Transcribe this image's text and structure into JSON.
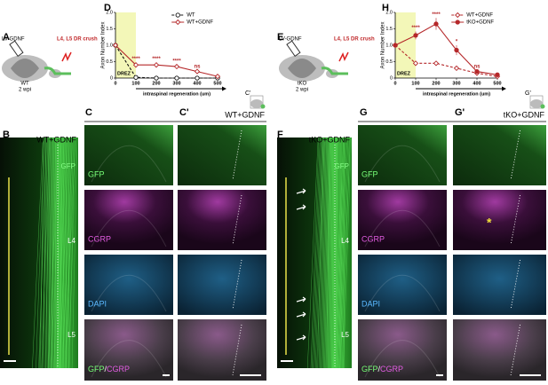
{
  "letters": [
    "A",
    "B",
    "C",
    "C'",
    "D",
    "E",
    "F",
    "G",
    "G'",
    "H"
  ],
  "left": {
    "vector": "LV-GDNF",
    "injury": "L4, L5 DR crush",
    "genotype": "WT",
    "time": "2 wpi",
    "condition": "WT+GDNF",
    "levels": [
      "L4",
      "L5"
    ],
    "stains": [
      "GFP",
      "CGRP",
      "DAPI"
    ],
    "merge": [
      "GFP",
      "/",
      "CGRP"
    ],
    "inset": "C'"
  },
  "right": {
    "vector": "LV-GDNF",
    "injury": "L4, L5 DR crush",
    "genotype": "tKO",
    "time": "2 wpi",
    "condition": "tKO+GDNF",
    "levels": [
      "L4",
      "L5"
    ],
    "stains": [
      "GFP",
      "CGRP",
      "DAPI"
    ],
    "merge": [
      "GFP",
      "/",
      "CGRP"
    ],
    "inset": "G'",
    "marker": "*"
  },
  "chart_data": [
    {
      "type": "line",
      "ylabel": "Axon Number Index",
      "xlabel": "intraspinal regeneration (um)",
      "region_label": "DREZ",
      "region": [
        0,
        100
      ],
      "x": [
        0,
        100,
        200,
        300,
        400,
        500
      ],
      "xlim": [
        0,
        500
      ],
      "xticks": [
        0,
        100,
        200,
        300,
        400,
        500
      ],
      "ylim": [
        0,
        2
      ],
      "yticks": [
        0,
        0.5,
        {
          "value": 1,
          "label": "1.0"
        },
        1.5,
        {
          "value": 2,
          "label": "2.0"
        }
      ],
      "legend": "upper right",
      "series": [
        {
          "name": "WT",
          "color": "#111111",
          "linestyle": "dashed",
          "marker": "open-circle",
          "values": [
            1.0,
            0.02,
            0.0,
            0.0,
            0.0,
            0.0
          ],
          "errors": [
            0.05,
            0.02,
            0.01,
            0.01,
            0.01,
            0.01
          ]
        },
        {
          "name": "WT+GDNF",
          "color": "#b5282a",
          "linestyle": "solid",
          "marker": "open-diamond",
          "values": [
            1.0,
            0.4,
            0.4,
            0.35,
            0.2,
            0.05
          ],
          "errors": [
            0.05,
            0.08,
            0.08,
            0.06,
            0.05,
            0.02
          ]
        }
      ],
      "annotations": [
        {
          "x": 100,
          "text": "****"
        },
        {
          "x": 200,
          "text": "****"
        },
        {
          "x": 300,
          "text": "****"
        },
        {
          "x": 400,
          "text": "ns"
        }
      ]
    },
    {
      "type": "line",
      "ylabel": "Axon Number Index",
      "xlabel": "intraspinal regeneration (um)",
      "region_label": "DREZ",
      "region": [
        0,
        100
      ],
      "x": [
        0,
        100,
        200,
        300,
        400,
        500
      ],
      "xlim": [
        0,
        500
      ],
      "xticks": [
        0,
        100,
        200,
        300,
        400,
        500
      ],
      "ylim": [
        0,
        2
      ],
      "yticks": [
        0,
        0.5,
        {
          "value": 1,
          "label": "1.0"
        },
        1.5,
        {
          "value": 2,
          "label": "2.0"
        }
      ],
      "legend": "upper right",
      "series": [
        {
          "name": "WT+GDNF",
          "color": "#b5282a",
          "linestyle": "dashed",
          "marker": "open-diamond",
          "values": [
            1.0,
            0.45,
            0.45,
            0.3,
            0.15,
            0.05
          ],
          "errors": [
            0.05,
            0.06,
            0.06,
            0.05,
            0.04,
            0.02
          ]
        },
        {
          "name": "tKO+GDNF",
          "color": "#b5282a",
          "linestyle": "solid",
          "marker": "filled-circle",
          "values": [
            1.0,
            1.3,
            1.65,
            0.85,
            0.2,
            0.1
          ],
          "errors": [
            0.05,
            0.12,
            0.18,
            0.15,
            0.05,
            0.03
          ]
        }
      ],
      "annotations": [
        {
          "x": 100,
          "text": "****"
        },
        {
          "x": 200,
          "text": "****"
        },
        {
          "x": 300,
          "text": "*"
        },
        {
          "x": 400,
          "text": "ns"
        }
      ]
    }
  ]
}
